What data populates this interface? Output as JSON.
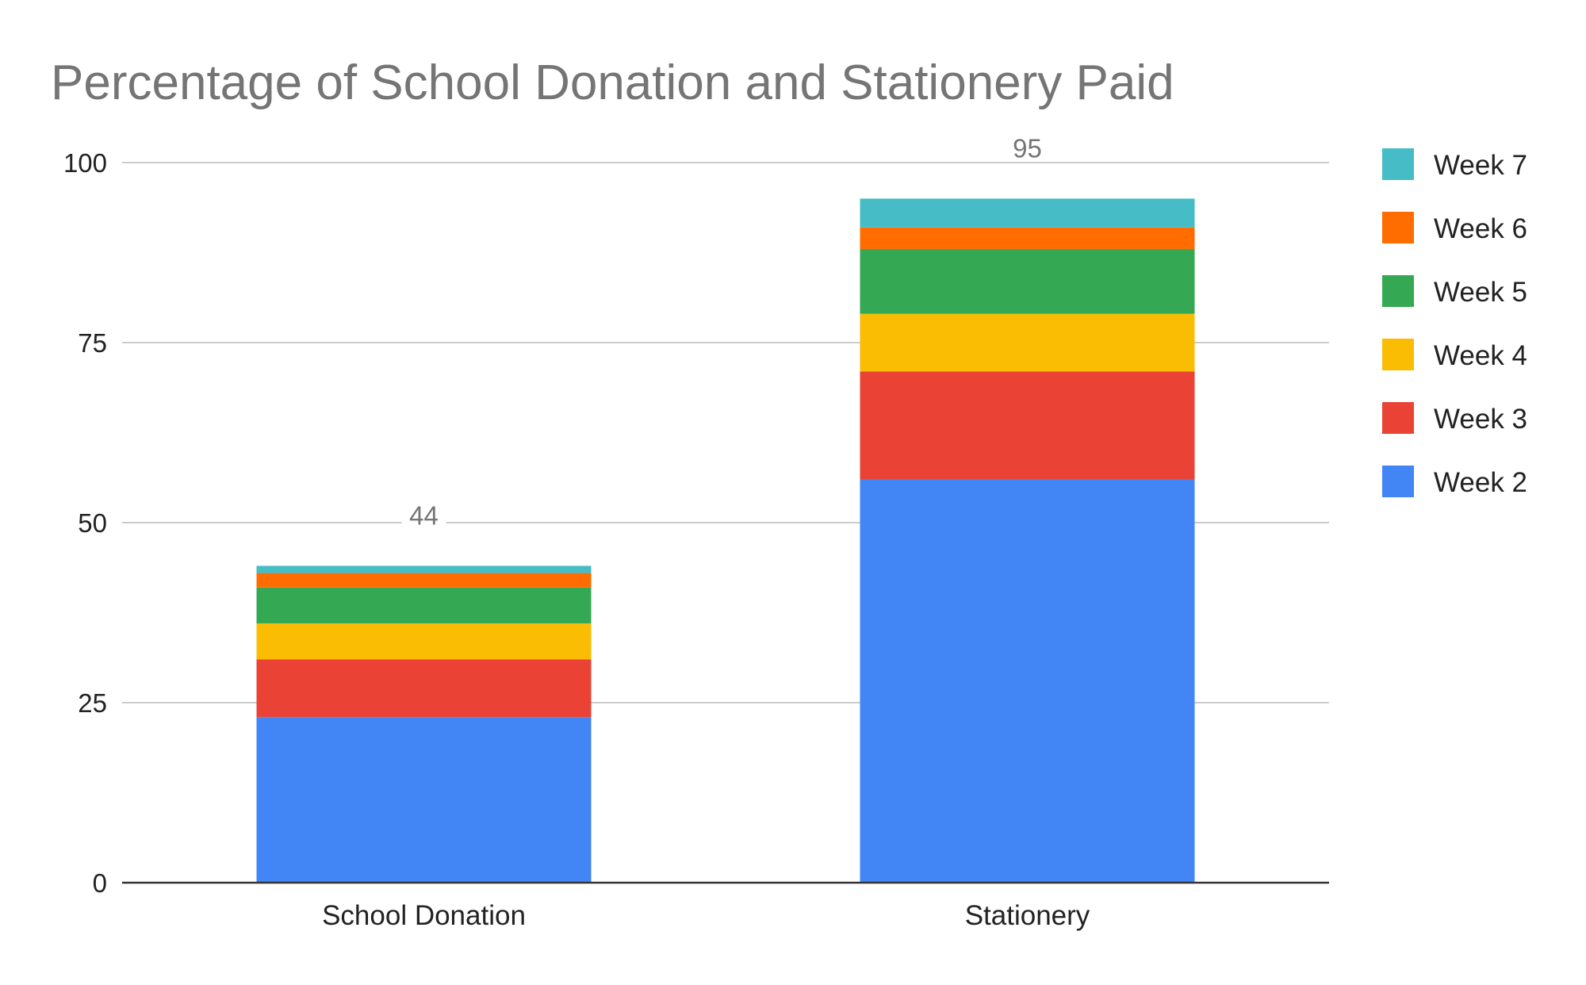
{
  "chart_data": {
    "type": "bar",
    "stacked": true,
    "title": "Percentage of School Donation and Stationery Paid",
    "xlabel": "",
    "ylabel": "",
    "ylim": [
      0,
      100
    ],
    "yticks": [
      "0",
      "25",
      "50",
      "75",
      "100"
    ],
    "grid": true,
    "legend_position": "right",
    "categories": [
      "School Donation",
      "Stationery"
    ],
    "totals": [
      "44",
      "95"
    ],
    "series": [
      {
        "name": "Week 2",
        "color": "#4285f4",
        "values": [
          23,
          56
        ]
      },
      {
        "name": "Week 3",
        "color": "#ea4335",
        "values": [
          8,
          15
        ]
      },
      {
        "name": "Week 4",
        "color": "#fbbc04",
        "values": [
          5,
          8
        ]
      },
      {
        "name": "Week 5",
        "color": "#34a853",
        "values": [
          5,
          9
        ]
      },
      {
        "name": "Week 6",
        "color": "#ff6d01",
        "values": [
          2,
          3
        ]
      },
      {
        "name": "Week 7",
        "color": "#46bdc6",
        "values": [
          1,
          4
        ]
      }
    ]
  }
}
